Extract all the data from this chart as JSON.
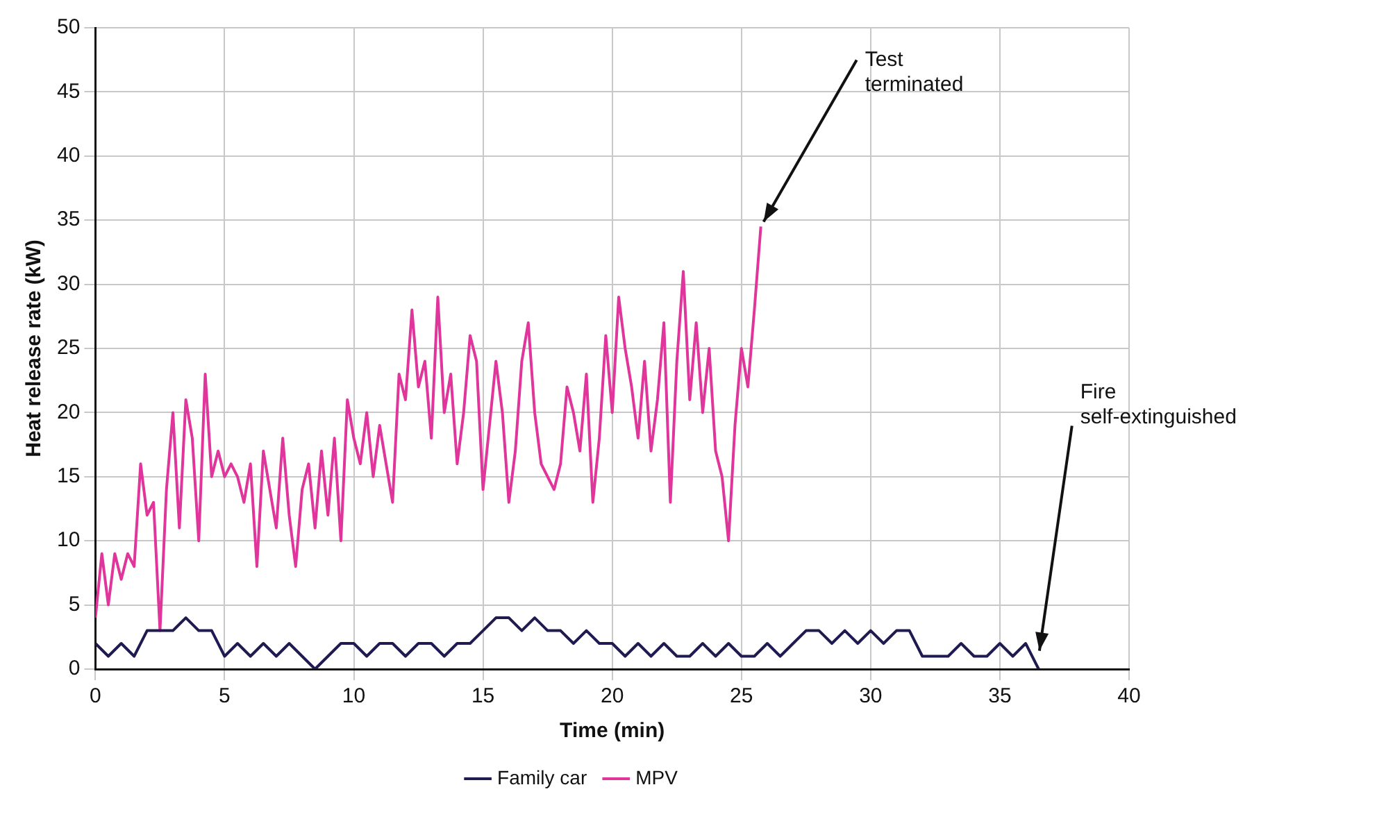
{
  "chart_data": {
    "type": "line",
    "xlabel": "Time (min)",
    "ylabel": "Heat release rate (kW)",
    "xlim": [
      0,
      40
    ],
    "xticks": [
      0,
      5,
      10,
      15,
      20,
      25,
      30,
      35,
      40
    ],
    "ylim": [
      0,
      50
    ],
    "yticks": [
      0,
      5,
      10,
      15,
      20,
      25,
      30,
      35,
      40,
      45,
      50
    ],
    "grid": true,
    "legend": "bottom",
    "marker": "none",
    "line_style": "solid",
    "annotations": [
      {
        "text": "Test terminated",
        "x": 25.75,
        "y": 34.5
      },
      {
        "text": "Fire self-extinguished",
        "x": 36.5,
        "y": 1
      }
    ],
    "series": [
      {
        "name": "Family car",
        "color": "#1f1a4f",
        "x": [
          0,
          0.5,
          1,
          1.5,
          2,
          2.5,
          3,
          3.5,
          4,
          4.5,
          5,
          5.5,
          6,
          6.5,
          7,
          7.5,
          8,
          8.5,
          9,
          9.5,
          10,
          10.5,
          11,
          11.5,
          12,
          12.5,
          13,
          13.5,
          14,
          14.5,
          15,
          15.5,
          16,
          16.5,
          17,
          17.5,
          18,
          18.5,
          19,
          19.5,
          20,
          20.5,
          21,
          21.5,
          22,
          22.5,
          23,
          23.5,
          24,
          24.5,
          25,
          25.5,
          26,
          26.5,
          27,
          27.5,
          28,
          28.5,
          29,
          29.5,
          30,
          30.5,
          31,
          31.5,
          32,
          32.5,
          33,
          33.5,
          34,
          34.5,
          35,
          35.5,
          36,
          36.5
        ],
        "values": [
          2,
          1,
          2,
          1,
          3,
          3,
          3,
          4,
          3,
          3,
          1,
          2,
          1,
          2,
          1,
          2,
          1,
          0,
          1,
          2,
          2,
          1,
          2,
          2,
          1,
          2,
          2,
          1,
          2,
          2,
          3,
          4,
          4,
          3,
          4,
          3,
          3,
          2,
          3,
          2,
          2,
          1,
          2,
          1,
          2,
          1,
          1,
          2,
          1,
          2,
          1,
          1,
          2,
          1,
          2,
          3,
          3,
          2,
          3,
          2,
          3,
          2,
          3,
          3,
          1,
          1,
          1,
          2,
          1,
          1,
          2,
          1,
          2,
          0
        ]
      },
      {
        "name": "MPV",
        "color": "#e0359a",
        "x": [
          0,
          0.25,
          0.5,
          0.75,
          1,
          1.25,
          1.5,
          1.75,
          2,
          2.25,
          2.5,
          2.75,
          3,
          3.25,
          3.5,
          3.75,
          4,
          4.25,
          4.5,
          4.75,
          5,
          5.25,
          5.5,
          5.75,
          6,
          6.25,
          6.5,
          6.75,
          7,
          7.25,
          7.5,
          7.75,
          8,
          8.25,
          8.5,
          8.75,
          9,
          9.25,
          9.5,
          9.75,
          10,
          10.25,
          10.5,
          10.75,
          11,
          11.25,
          11.5,
          11.75,
          12,
          12.25,
          12.5,
          12.75,
          13,
          13.25,
          13.5,
          13.75,
          14,
          14.25,
          14.5,
          14.75,
          15,
          15.25,
          15.5,
          15.75,
          16,
          16.25,
          16.5,
          16.75,
          17,
          17.25,
          17.5,
          17.75,
          18,
          18.25,
          18.5,
          18.75,
          19,
          19.25,
          19.5,
          19.75,
          20,
          20.25,
          20.5,
          20.75,
          21,
          21.25,
          21.5,
          21.75,
          22,
          22.25,
          22.5,
          22.75,
          23,
          23.25,
          23.5,
          23.75,
          24,
          24.25,
          24.5,
          24.75,
          25,
          25.25,
          25.5,
          25.75
        ],
        "values": [
          4,
          9,
          5,
          9,
          7,
          9,
          8,
          16,
          12,
          13,
          3,
          14,
          20,
          11,
          21,
          18,
          10,
          23,
          15,
          17,
          15,
          16,
          15,
          13,
          16,
          8,
          17,
          14,
          11,
          18,
          12,
          8,
          14,
          16,
          11,
          17,
          12,
          18,
          10,
          21,
          18,
          16,
          20,
          15,
          19,
          16,
          13,
          23,
          21,
          28,
          22,
          24,
          18,
          29,
          20,
          23,
          16,
          20,
          26,
          24,
          14,
          19,
          24,
          20,
          13,
          17,
          24,
          27,
          20,
          16,
          15,
          14,
          16,
          22,
          20,
          17,
          23,
          13,
          18,
          26,
          20,
          29,
          25,
          22,
          18,
          24,
          17,
          21,
          27,
          13,
          24,
          31,
          21,
          27,
          20,
          25,
          17,
          15,
          10,
          19,
          25,
          22,
          28,
          34.5
        ]
      }
    ]
  }
}
